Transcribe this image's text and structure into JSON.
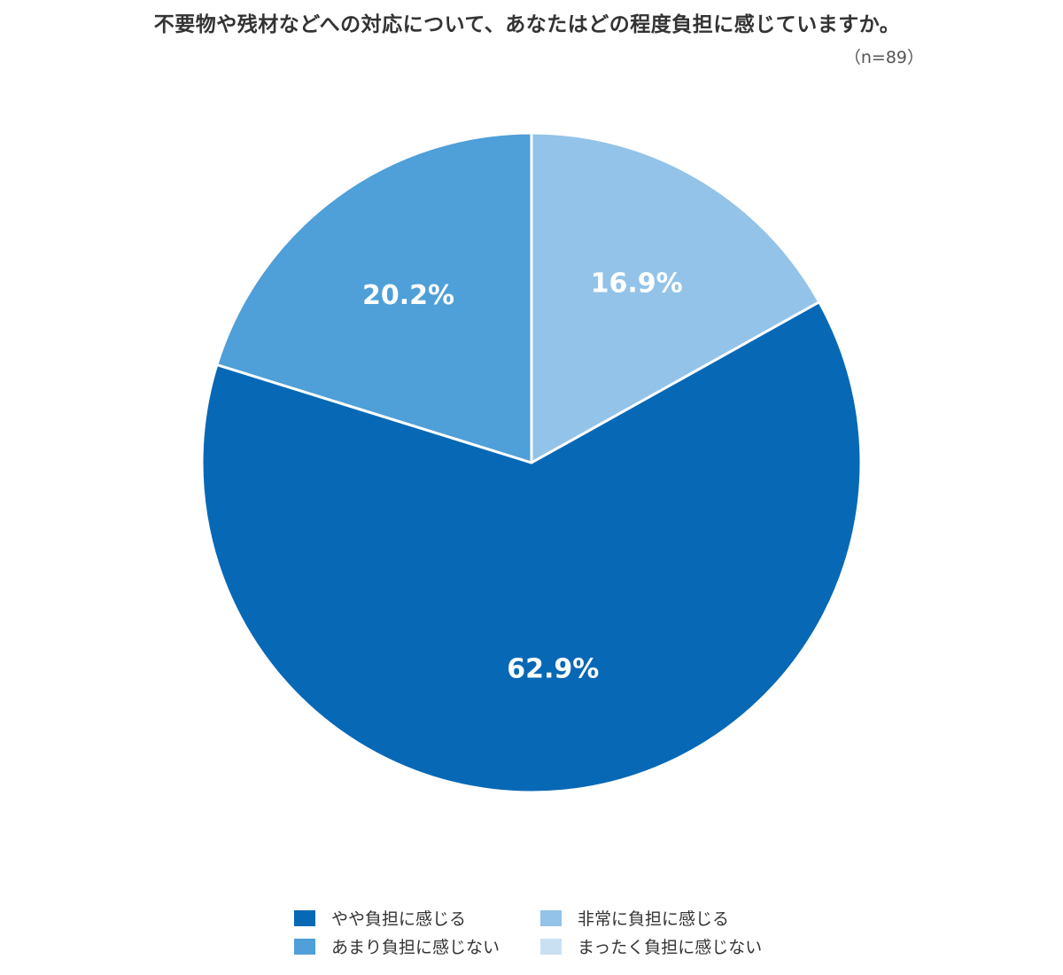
{
  "title": "不要物や残材などへの対応について、あなたはどの程度負担に感じていますか。",
  "sample_size": "（n=89）",
  "chart_data": {
    "type": "pie",
    "title": "不要物や残材などへの対応について、あなたはどの程度負担に感じていますか。",
    "slices": [
      {
        "label": "非常に負担に感じる",
        "value": 16.9,
        "display": "16.9%",
        "color": "#93c3e8"
      },
      {
        "label": "やや負担に感じる",
        "value": 62.9,
        "display": "62.9%",
        "color": "#0768b6"
      },
      {
        "label": "あまり負担に感じない",
        "value": 20.2,
        "display": "20.2%",
        "color": "#4f9fd8"
      },
      {
        "label": "まったく負担に感じない",
        "value": 0,
        "display": "",
        "color": "#c9e0f3"
      }
    ],
    "start": "12 o'clock",
    "direction": "clockwise",
    "legend_placement": "bottom-center"
  },
  "legend": {
    "items": [
      {
        "label": "やや負担に感じる",
        "color": "#0768b6"
      },
      {
        "label": "非常に負担に感じる",
        "color": "#93c3e8"
      },
      {
        "label": "あまり負担に感じない",
        "color": "#4f9fd8"
      },
      {
        "label": "まったく負担に感じない",
        "color": "#c9e0f3"
      }
    ]
  }
}
